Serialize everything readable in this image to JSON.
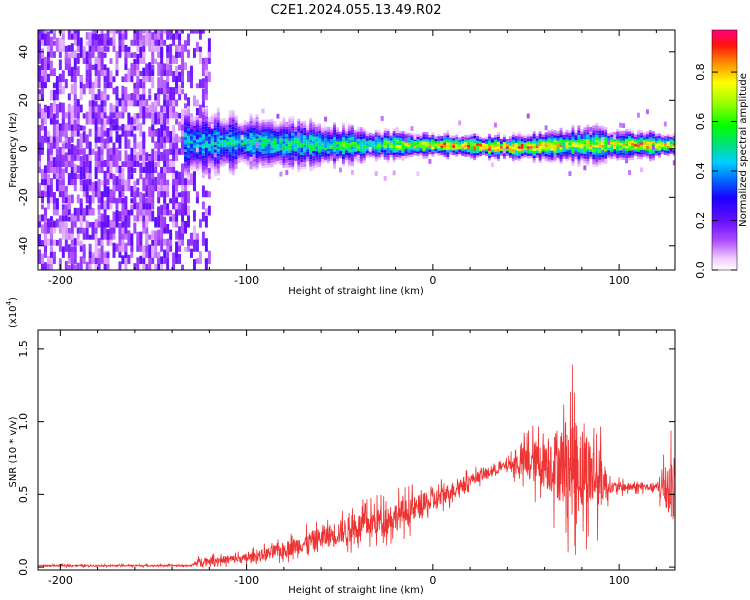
{
  "title": "C2E1.2024.055.13.49.R02",
  "chart_data": [
    {
      "type": "heatmap",
      "xlabel": "Height of straight line (km)",
      "ylabel": "Frequency (Hz)",
      "xlim": [
        -212,
        130
      ],
      "ylim": [
        -50,
        49
      ],
      "x_ticks": [
        -200,
        -100,
        0,
        100
      ],
      "y_ticks": [
        -40,
        -20,
        0,
        20,
        40
      ],
      "colorbar": {
        "label": "Normalized spectral amplitude",
        "range": [
          0.0,
          0.97
        ],
        "ticks": [
          0.0,
          0.2,
          0.4,
          0.6,
          0.8
        ],
        "tick_labels": [
          "0.0",
          "0.2",
          "0.4",
          "0.6",
          "0.8"
        ]
      },
      "noise_region": {
        "x_start": -212,
        "x_end": -120,
        "level": 0.1
      },
      "signal_band": [
        {
          "x": -133,
          "center_freq": 2,
          "half_width": 10,
          "peak_amplitude": 0.45
        },
        {
          "x": -100,
          "center_freq": 2,
          "half_width": 7,
          "peak_amplitude": 0.5
        },
        {
          "x": -60,
          "center_freq": 1,
          "half_width": 6,
          "peak_amplitude": 0.55
        },
        {
          "x": -30,
          "center_freq": 1,
          "half_width": 4,
          "peak_amplitude": 0.6
        },
        {
          "x": 0,
          "center_freq": 1,
          "half_width": 3,
          "peak_amplitude": 0.85
        },
        {
          "x": 40,
          "center_freq": 0,
          "half_width": 3,
          "peak_amplitude": 0.9
        },
        {
          "x": 75,
          "center_freq": 1,
          "half_width": 5,
          "peak_amplitude": 0.7
        },
        {
          "x": 130,
          "center_freq": 1,
          "half_width": 3,
          "peak_amplitude": 0.85
        }
      ]
    },
    {
      "type": "line",
      "xlabel": "Height of straight line (km)",
      "ylabel": "SNR (10 * v/v)",
      "y_multiplier_label": "(x10",
      "y_multiplier_exp": "4",
      "xlim": [
        -212,
        130
      ],
      "ylim": [
        -0.02,
        1.63
      ],
      "x_ticks": [
        -200,
        -100,
        0,
        100
      ],
      "y_ticks": [
        0.0,
        0.5,
        1.0,
        1.5
      ],
      "y_tick_labels": [
        "0.0",
        "0.5",
        "1.0",
        "1.5"
      ],
      "color": "#ee3333",
      "envelope": {
        "x": [
          -212,
          -130,
          -125,
          -100,
          -80,
          -60,
          -40,
          -20,
          0,
          20,
          40,
          50,
          60,
          70,
          75,
          80,
          90,
          95,
          110,
          120,
          125,
          130
        ],
        "mean": [
          0.01,
          0.01,
          0.04,
          0.06,
          0.12,
          0.2,
          0.28,
          0.35,
          0.45,
          0.6,
          0.7,
          0.72,
          0.72,
          0.7,
          0.7,
          0.68,
          0.6,
          0.55,
          0.55,
          0.55,
          0.55,
          0.55
        ],
        "spread": [
          0.01,
          0.01,
          0.05,
          0.06,
          0.1,
          0.15,
          0.18,
          0.2,
          0.15,
          0.08,
          0.06,
          0.25,
          0.35,
          0.55,
          0.7,
          0.6,
          0.4,
          0.08,
          0.05,
          0.05,
          0.35,
          0.45
        ]
      }
    }
  ]
}
